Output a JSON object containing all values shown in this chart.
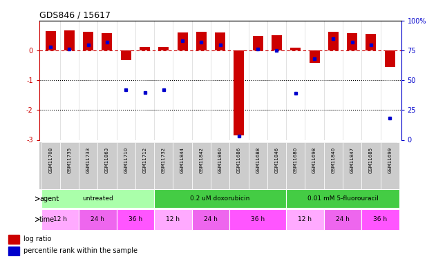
{
  "title": "GDS846 / 15617",
  "samples": [
    "GSM11708",
    "GSM11735",
    "GSM11733",
    "GSM11863",
    "GSM11710",
    "GSM11712",
    "GSM11732",
    "GSM11844",
    "GSM11842",
    "GSM11860",
    "GSM11686",
    "GSM11688",
    "GSM11846",
    "GSM11680",
    "GSM11698",
    "GSM11840",
    "GSM11847",
    "GSM11685",
    "GSM11699"
  ],
  "log_ratio": [
    0.65,
    0.68,
    0.62,
    0.58,
    -0.33,
    0.12,
    0.13,
    0.6,
    0.62,
    0.6,
    -2.85,
    0.48,
    0.52,
    0.1,
    -0.42,
    0.62,
    0.58,
    0.57,
    -0.55
  ],
  "percentile": [
    78,
    76,
    80,
    82,
    42,
    40,
    42,
    83,
    82,
    80,
    3,
    76,
    75,
    39,
    68,
    85,
    82,
    80,
    18
  ],
  "ylim_left": [
    -3,
    1
  ],
  "ylim_right": [
    0,
    100
  ],
  "bar_color": "#cc0000",
  "dot_color": "#0000cc",
  "dashed_line_color": "#cc0000",
  "left_yticks": [
    0,
    -1,
    -2,
    -3
  ],
  "left_yticklabels": [
    "0",
    "-1",
    "-2",
    "-3"
  ],
  "right_yticks": [
    0,
    25,
    50,
    75,
    100
  ],
  "right_yticklabels": [
    "0",
    "25",
    "50",
    "75",
    "100%"
  ],
  "agents": [
    {
      "label": "untreated",
      "start": 0,
      "end": 6,
      "color": "#aaffaa"
    },
    {
      "label": "0.2 uM doxorubicin",
      "start": 6,
      "end": 13,
      "color": "#44cc44"
    },
    {
      "label": "0.01 mM 5-fluorouracil",
      "start": 13,
      "end": 19,
      "color": "#44cc44"
    }
  ],
  "times": [
    {
      "label": "12 h",
      "start": 0,
      "end": 2,
      "color": "#ffaaff"
    },
    {
      "label": "24 h",
      "start": 2,
      "end": 4,
      "color": "#ee66ee"
    },
    {
      "label": "36 h",
      "start": 4,
      "end": 6,
      "color": "#ff55ff"
    },
    {
      "label": "12 h",
      "start": 6,
      "end": 8,
      "color": "#ffaaff"
    },
    {
      "label": "24 h",
      "start": 8,
      "end": 10,
      "color": "#ee66ee"
    },
    {
      "label": "36 h",
      "start": 10,
      "end": 13,
      "color": "#ff55ff"
    },
    {
      "label": "12 h",
      "start": 13,
      "end": 15,
      "color": "#ffaaff"
    },
    {
      "label": "24 h",
      "start": 15,
      "end": 17,
      "color": "#ee66ee"
    },
    {
      "label": "36 h",
      "start": 17,
      "end": 19,
      "color": "#ff55ff"
    }
  ],
  "legend_log_ratio": "log ratio",
  "legend_percentile": "percentile rank within the sample",
  "agent_label": "agent",
  "time_label": "time",
  "xticklabel_bg": "#cccccc",
  "xticklabel_fontsize": 5.5,
  "bar_width": 0.55
}
